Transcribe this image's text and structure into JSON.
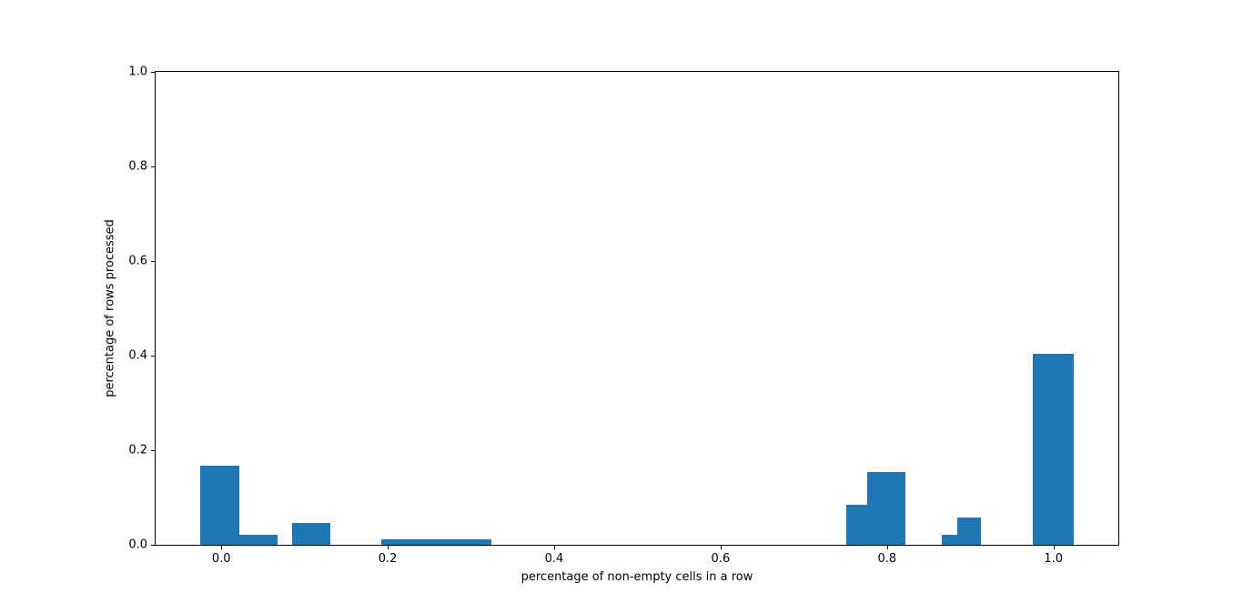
{
  "figure": {
    "background": "#ffffff"
  },
  "chart_data": {
    "type": "bar",
    "title": "",
    "xlabel": "percentage of non-empty cells in a row",
    "ylabel": "percentage of rows processed",
    "xlim": [
      -0.079,
      1.078
    ],
    "ylim": [
      0,
      1.0
    ],
    "grid": false,
    "bar_color": "#1f77b4",
    "xticks": [
      {
        "v": 0.0,
        "label": "0.0"
      },
      {
        "v": 0.2,
        "label": "0.2"
      },
      {
        "v": 0.4,
        "label": "0.4"
      },
      {
        "v": 0.6,
        "label": "0.6"
      },
      {
        "v": 0.8,
        "label": "0.8"
      },
      {
        "v": 1.0,
        "label": "1.0"
      }
    ],
    "yticks": [
      {
        "v": 0.0,
        "label": "0.0"
      },
      {
        "v": 0.2,
        "label": "0.2"
      },
      {
        "v": 0.4,
        "label": "0.4"
      },
      {
        "v": 0.6,
        "label": "0.6"
      },
      {
        "v": 0.8,
        "label": "0.8"
      },
      {
        "v": 1.0,
        "label": "1.0"
      }
    ],
    "bars": [
      {
        "x": -0.025,
        "width": 0.047,
        "height": 0.167
      },
      {
        "x": 0.022,
        "width": 0.046,
        "height": 0.021
      },
      {
        "x": 0.085,
        "width": 0.046,
        "height": 0.046
      },
      {
        "x": 0.192,
        "width": 0.133,
        "height": 0.012
      },
      {
        "x": 0.751,
        "width": 0.025,
        "height": 0.085
      },
      {
        "x": 0.776,
        "width": 0.046,
        "height": 0.154
      },
      {
        "x": 0.866,
        "width": 0.018,
        "height": 0.021
      },
      {
        "x": 0.884,
        "width": 0.029,
        "height": 0.058
      },
      {
        "x": 0.975,
        "width": 0.049,
        "height": 0.404
      }
    ]
  }
}
